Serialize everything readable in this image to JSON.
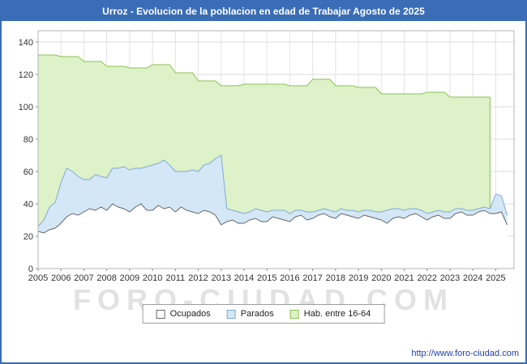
{
  "title": "Urroz - Evolucion de la poblacion en edad de Trabajar Agosto de 2025",
  "watermark": "FORO-CIUDAD.COM",
  "footer": {
    "url": "http://www.foro-ciudad.com"
  },
  "colors": {
    "frame_border": "#3a6db5",
    "titlebar_bg": "#3a6db5",
    "titlebar_text": "#ffffff",
    "url_text": "#1f3fae",
    "watermark_text": "#e2e2e2",
    "grid": "#dddddd",
    "vgrid": "#e4e4e4",
    "plot_border": "#b5b5b5",
    "axis_text": "#333333"
  },
  "legend": [
    {
      "label": "Ocupados",
      "fill": "#ffffff",
      "stroke": "#666666"
    },
    {
      "label": "Parados",
      "fill": "#d4e7f6",
      "stroke": "#7fa8d9"
    },
    {
      "label": "Hab. entre 16-64",
      "fill": "#ddf2c8",
      "stroke": "#8cc152"
    }
  ],
  "chart_data": {
    "type": "area",
    "title": "Urroz - Evolucion de la poblacion en edad de Trabajar Agosto de 2025",
    "xlabel": "",
    "ylabel": "",
    "ylim": [
      0,
      140
    ],
    "grid": true,
    "legend_position": "bottom",
    "yticks": [
      0,
      20,
      40,
      60,
      80,
      100,
      120,
      140
    ],
    "xticks": [
      2005,
      2006,
      2007,
      2008,
      2009,
      2010,
      2011,
      2012,
      2013,
      2014,
      2015,
      2016,
      2017,
      2018,
      2019,
      2020,
      2021,
      2022,
      2023,
      2024,
      2025
    ],
    "x": [
      2005,
      2005.25,
      2005.5,
      2005.75,
      2006,
      2006.25,
      2006.5,
      2006.75,
      2007,
      2007.25,
      2007.5,
      2007.75,
      2008,
      2008.25,
      2008.5,
      2008.75,
      2009,
      2009.25,
      2009.5,
      2009.75,
      2010,
      2010.25,
      2010.5,
      2010.75,
      2011,
      2011.25,
      2011.5,
      2011.75,
      2012,
      2012.25,
      2012.5,
      2012.75,
      2013,
      2013.25,
      2013.5,
      2013.75,
      2014,
      2014.25,
      2014.5,
      2014.75,
      2015,
      2015.25,
      2015.5,
      2015.75,
      2016,
      2016.25,
      2016.5,
      2016.75,
      2017,
      2017.25,
      2017.5,
      2017.75,
      2018,
      2018.25,
      2018.5,
      2018.75,
      2019,
      2019.25,
      2019.5,
      2019.75,
      2020,
      2020.25,
      2020.5,
      2020.75,
      2021,
      2021.25,
      2021.5,
      2021.75,
      2022,
      2022.25,
      2022.5,
      2022.75,
      2023,
      2023.25,
      2023.5,
      2023.75,
      2024,
      2024.25,
      2024.5,
      2024.75,
      2025,
      2025.25,
      2025.5
    ],
    "series": [
      {
        "name": "Hab. entre 16-64",
        "fill": "#ddf2c8",
        "stroke": "#8cc152",
        "values": [
          132,
          132,
          132,
          132,
          131,
          131,
          131,
          131,
          128,
          128,
          128,
          128,
          125,
          125,
          125,
          125,
          124,
          124,
          124,
          124,
          126,
          126,
          126,
          126,
          121,
          121,
          121,
          121,
          116,
          116,
          116,
          116,
          113,
          113,
          113,
          113,
          114,
          114,
          114,
          114,
          114,
          114,
          114,
          114,
          113,
          113,
          113,
          113,
          117,
          117,
          117,
          117,
          113,
          113,
          113,
          113,
          112,
          112,
          112,
          112,
          108,
          108,
          108,
          108,
          108,
          108,
          108,
          108,
          109,
          109,
          109,
          109,
          106,
          106,
          106,
          106,
          106,
          106,
          106,
          106,
          null,
          null,
          null
        ]
      },
      {
        "name": "Parados",
        "stacked_on": "Ocupados",
        "fill": "#d4e7f6",
        "stroke": "#7fa8d9",
        "values": [
          3,
          8,
          14,
          16,
          25,
          30,
          26,
          24,
          20,
          18,
          22,
          19,
          20,
          22,
          24,
          26,
          26,
          24,
          22,
          27,
          28,
          26,
          30,
          26,
          25,
          22,
          24,
          26,
          26,
          28,
          30,
          35,
          43,
          8,
          6,
          7,
          6,
          5,
          6,
          7,
          6,
          4,
          5,
          6,
          5,
          4,
          3,
          5,
          4,
          3,
          3,
          4,
          4,
          3,
          3,
          4,
          4,
          3,
          4,
          4,
          5,
          8,
          6,
          5,
          5,
          4,
          3,
          4,
          4,
          3,
          3,
          4,
          4,
          3,
          2,
          3,
          3,
          2,
          2,
          3,
          12,
          10,
          6
        ]
      },
      {
        "name": "Ocupados",
        "fill": "#ffffff",
        "stroke": "#666666",
        "values": [
          23,
          22,
          24,
          25,
          28,
          32,
          34,
          33,
          35,
          37,
          36,
          38,
          36,
          40,
          38,
          37,
          35,
          38,
          40,
          36,
          36,
          39,
          37,
          38,
          35,
          38,
          36,
          35,
          34,
          36,
          35,
          33,
          27,
          29,
          30,
          28,
          28,
          30,
          31,
          29,
          29,
          32,
          31,
          30,
          29,
          32,
          33,
          30,
          31,
          33,
          34,
          32,
          31,
          34,
          33,
          32,
          31,
          33,
          32,
          31,
          30,
          28,
          31,
          32,
          31,
          33,
          34,
          32,
          30,
          32,
          33,
          31,
          31,
          34,
          35,
          33,
          33,
          35,
          36,
          34,
          34,
          35,
          27
        ]
      }
    ]
  }
}
